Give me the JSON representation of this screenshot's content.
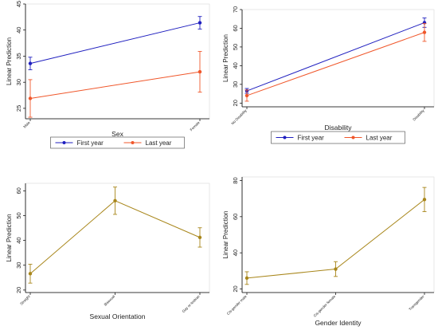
{
  "colors": {
    "first": "#1f1fbf",
    "last": "#f0572b",
    "single": "#a8861a",
    "axis": "#000000"
  },
  "chart_data": [
    {
      "id": "sex",
      "type": "line",
      "xlabel": "Sex",
      "ylabel": "Linear Prediction",
      "categories": [
        "Male",
        "Female"
      ],
      "ylim": [
        23,
        45
      ],
      "yticks": [
        25,
        30,
        35,
        40,
        45
      ],
      "grid": false,
      "legend": "bottom",
      "series": [
        {
          "name": "First year",
          "color_key": "first",
          "values": [
            33.6,
            41.4
          ],
          "ci_low": [
            32.4,
            40.2
          ],
          "ci_high": [
            34.8,
            42.6
          ]
        },
        {
          "name": "Last year",
          "color_key": "last",
          "values": [
            26.9,
            32.0
          ],
          "ci_low": [
            23.3,
            28.1
          ],
          "ci_high": [
            30.5,
            35.9
          ]
        }
      ]
    },
    {
      "id": "disability",
      "type": "line",
      "xlabel": "Disability",
      "ylabel": "Linear Prediction",
      "categories": [
        "No Disability",
        "Disability"
      ],
      "ylim": [
        18,
        70
      ],
      "yticks": [
        20,
        30,
        40,
        50,
        60,
        70
      ],
      "grid": false,
      "legend": "bottom",
      "series": [
        {
          "name": "First year",
          "color_key": "first",
          "values": [
            26.5,
            63.0
          ],
          "ci_low": [
            25.2,
            60.5
          ],
          "ci_high": [
            27.8,
            65.5
          ]
        },
        {
          "name": "Last year",
          "color_key": "last",
          "values": [
            24.0,
            57.8
          ],
          "ci_low": [
            21.0,
            53.0
          ],
          "ci_high": [
            27.0,
            62.6
          ]
        }
      ]
    },
    {
      "id": "sexual-orientation",
      "type": "line",
      "xlabel": "Sexual Orientation",
      "ylabel": "Linear Prediction",
      "categories": [
        "Straight",
        "Bisexual",
        "Gay or lesbian"
      ],
      "ylim": [
        19,
        63
      ],
      "yticks": [
        20,
        30,
        40,
        50,
        60
      ],
      "grid": false,
      "legend": "none",
      "series": [
        {
          "name": "",
          "color_key": "single",
          "values": [
            26.6,
            56.0,
            41.2
          ],
          "ci_low": [
            22.8,
            50.5,
            37.3
          ],
          "ci_high": [
            30.4,
            61.5,
            45.1
          ]
        }
      ]
    },
    {
      "id": "gender-identity",
      "type": "line",
      "xlabel": "Gender Identity",
      "ylabel": "Linear Prediction",
      "categories": [
        "Cis-gender male",
        "Cis-gender female",
        "Transgender"
      ],
      "ylim": [
        18,
        82
      ],
      "yticks": [
        20,
        40,
        60,
        80
      ],
      "grid": false,
      "legend": "none",
      "series": [
        {
          "name": "",
          "color_key": "single",
          "values": [
            26.0,
            31.0,
            69.5
          ],
          "ci_low": [
            22.5,
            26.9,
            62.8
          ],
          "ci_high": [
            29.5,
            35.1,
            76.2
          ]
        }
      ]
    }
  ]
}
